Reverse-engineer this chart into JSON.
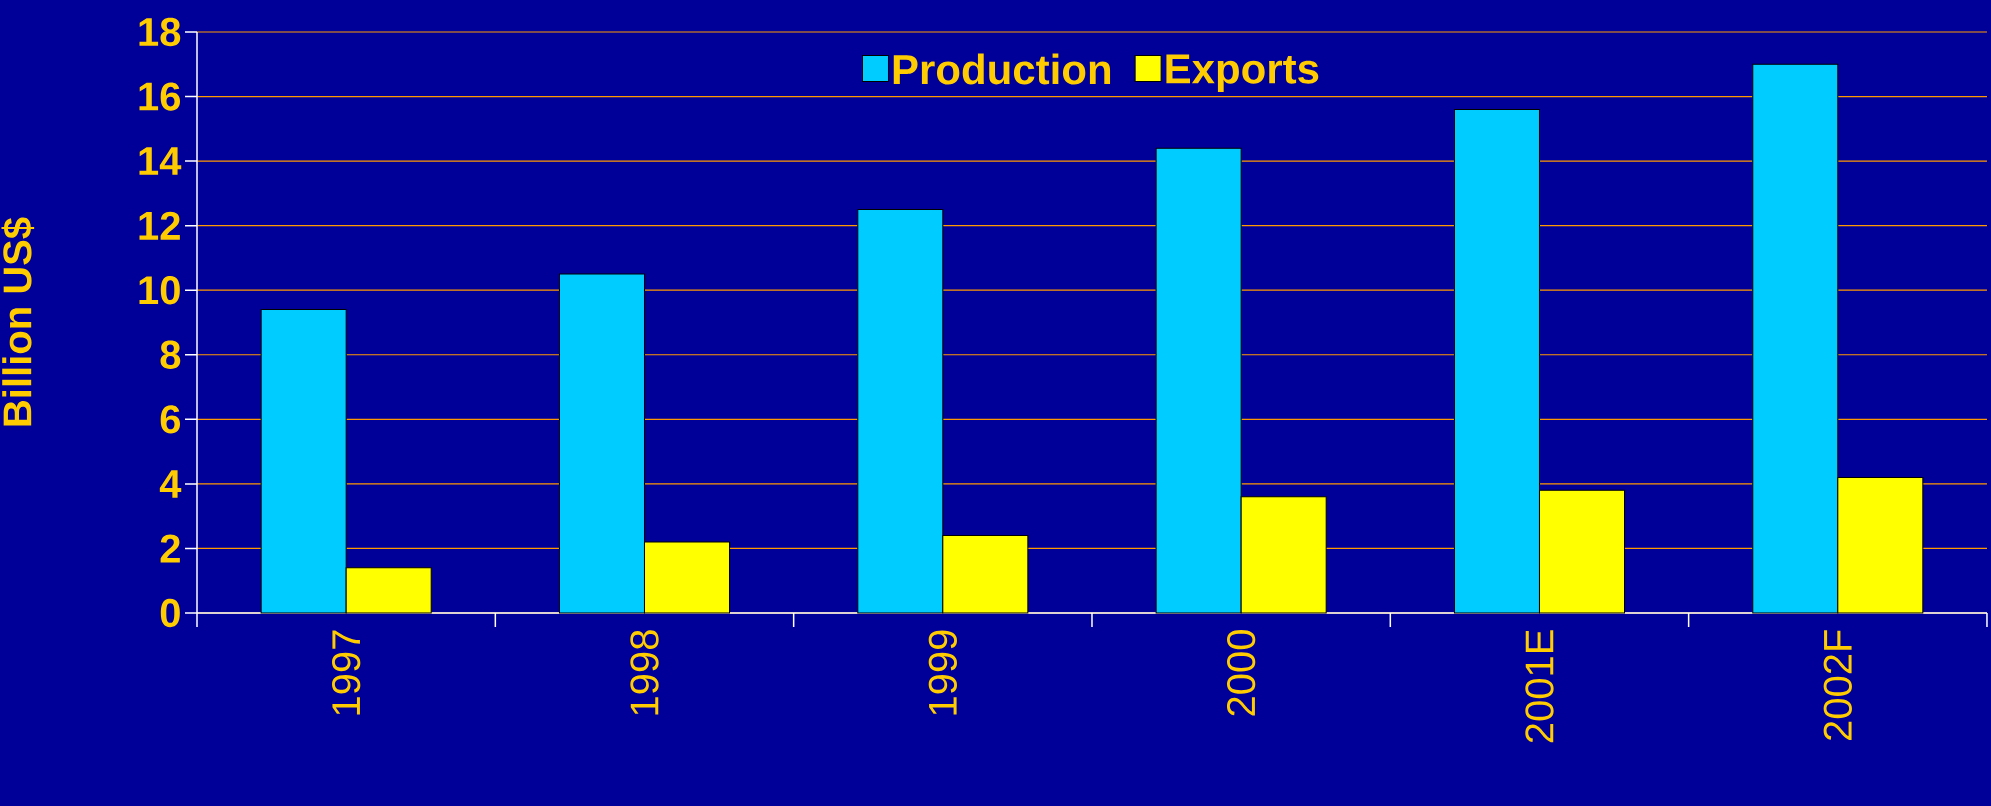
{
  "chart_data": {
    "type": "bar",
    "ylabel": "Billion US$",
    "categories": [
      "1997",
      "1998",
      "1999",
      "2000",
      "2001E",
      "2002F"
    ],
    "series": [
      {
        "name": "Production",
        "color": "#00ccff",
        "values": [
          9.4,
          10.5,
          12.5,
          14.4,
          15.6,
          17.0
        ]
      },
      {
        "name": "Exports",
        "color": "#ffff00",
        "values": [
          1.4,
          2.2,
          2.4,
          3.6,
          3.8,
          4.2
        ]
      }
    ],
    "ylim": [
      0,
      18
    ],
    "yticks": [
      0,
      2,
      4,
      6,
      8,
      10,
      12,
      14,
      16,
      18
    ],
    "grid": "y",
    "legend": "top"
  }
}
